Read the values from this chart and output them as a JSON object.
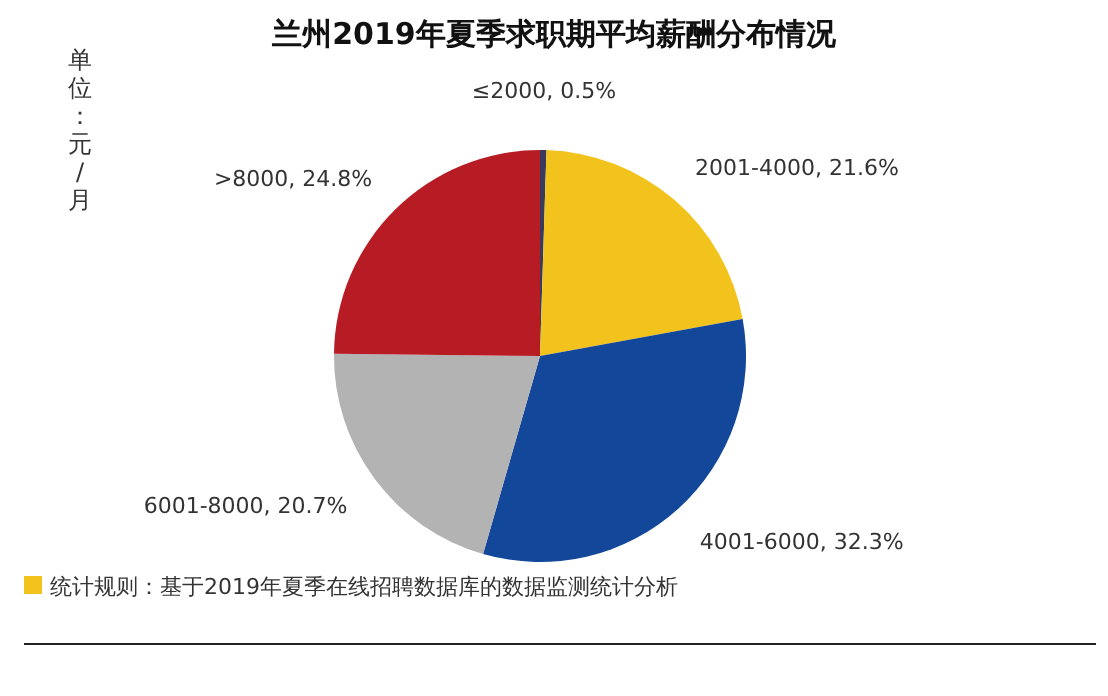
{
  "chart_data": {
    "type": "pie",
    "title": "兰州2019年夏季求职期平均薪酬分布情况",
    "categories": [
      "≤2000",
      "2001-4000",
      "4001-6000",
      "6001-8000",
      ">8000"
    ],
    "values": [
      0.5,
      21.6,
      32.3,
      20.7,
      24.8
    ],
    "value_labels": [
      "0.5%",
      "21.6%",
      "32.3%",
      "20.7%",
      "24.8%"
    ],
    "colors": [
      "#3a3a5c",
      "#f2c31c",
      "#12479a",
      "#b3b3b3",
      "#b71c25"
    ],
    "annotations": [
      "单位：元/月",
      "统计规则：基于2019年夏季在线招聘数据库的数据监测统计分析"
    ]
  }
}
